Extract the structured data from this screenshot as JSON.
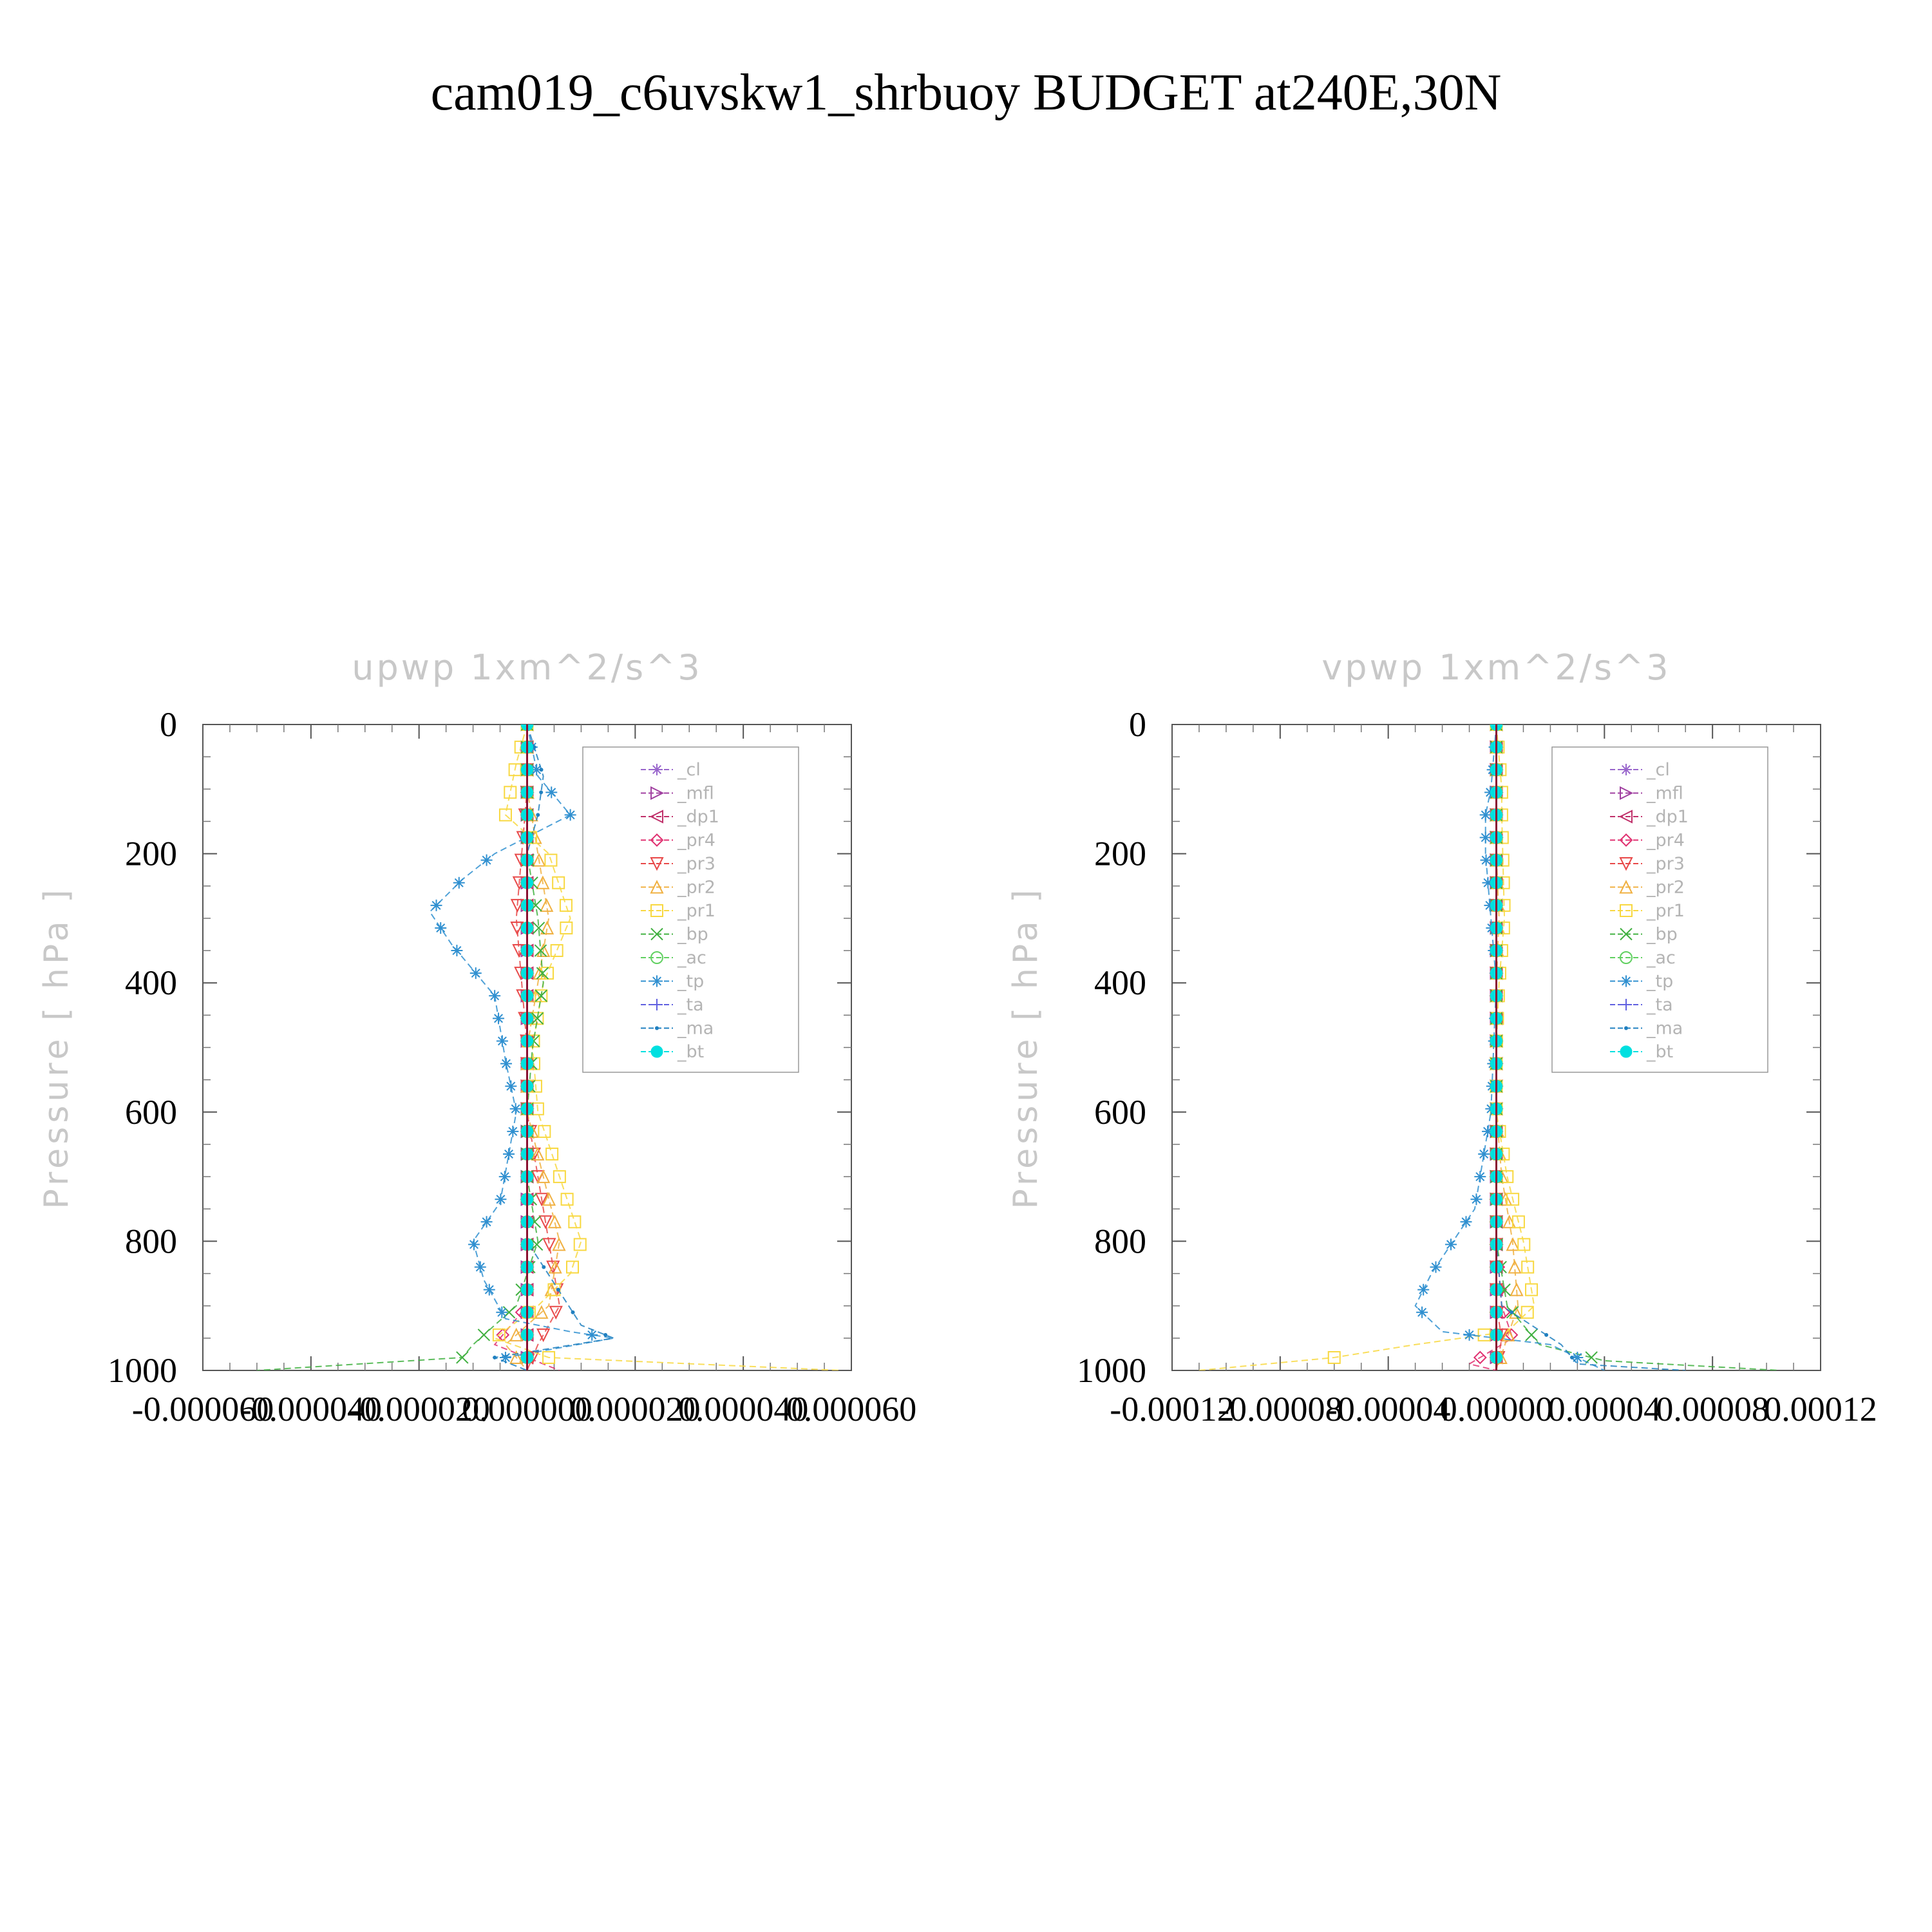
{
  "figure": {
    "title": "cam019_c6uvskw1_shrbuoy  BUDGET at240E,30N"
  },
  "chart_data": [
    {
      "type": "line",
      "title": "upwp    1xm^2/s^3",
      "ylabel": "Pressure [ hPa ]",
      "xlabel": "",
      "ylim": [
        1000,
        0
      ],
      "yticks": [
        "0",
        "200",
        "400",
        "600",
        "800",
        "1000"
      ],
      "ytick_values": [
        0,
        200,
        400,
        600,
        800,
        1000
      ],
      "xlim": [
        -6e-05,
        6e-05
      ],
      "xticks": [
        "-0.000060",
        "-0.000040",
        "-0.000020",
        "0.000000",
        "0.000020",
        "0.000040",
        "0.000060"
      ],
      "xtick_values": [
        -6e-05,
        -4e-05,
        -2e-05,
        0,
        2e-05,
        4e-05,
        6e-05
      ],
      "grid": false,
      "legend_position": "top-right",
      "series": [
        {
          "name": "_cl",
          "color": "#9966cc",
          "marker": "star",
          "x": [
            0,
            0,
            0,
            0,
            0,
            0,
            0,
            0,
            0,
            0,
            0
          ],
          "y": [
            0,
            100,
            200,
            300,
            400,
            500,
            600,
            700,
            800,
            900,
            1000
          ]
        },
        {
          "name": "_mfl",
          "color": "#a040a0",
          "marker": "tri-right",
          "x": [
            0,
            0,
            0,
            0,
            0,
            0,
            0,
            0,
            0,
            0,
            0
          ],
          "y": [
            0,
            100,
            200,
            300,
            400,
            500,
            600,
            700,
            800,
            900,
            1000
          ]
        },
        {
          "name": "_dp1",
          "color": "#c0306a",
          "marker": "tri-left",
          "x": [
            0,
            0,
            0,
            0,
            0,
            0,
            0,
            0,
            0,
            0,
            0
          ],
          "y": [
            0,
            100,
            200,
            300,
            400,
            500,
            600,
            700,
            800,
            900,
            1000
          ]
        },
        {
          "name": "_pr4",
          "color": "#e03070",
          "marker": "diamond",
          "x": [
            0,
            0,
            0,
            0,
            0,
            0,
            0,
            0,
            0,
            0,
            -6e-06,
            6e-06
          ],
          "y": [
            0,
            100,
            200,
            300,
            400,
            500,
            600,
            700,
            800,
            900,
            960,
            1000
          ]
        },
        {
          "name": "_pr3",
          "color": "#e84848",
          "marker": "tri-down",
          "x": [
            0,
            0,
            -1e-06,
            -2e-06,
            -1e-06,
            0,
            0,
            2e-06,
            4e-06,
            6e-06,
            2e-06,
            0
          ],
          "y": [
            0,
            100,
            200,
            300,
            400,
            500,
            600,
            700,
            800,
            900,
            960,
            1000
          ]
        },
        {
          "name": "_pr2",
          "color": "#f0b040",
          "marker": "tri-up",
          "x": [
            0,
            0,
            2e-06,
            4e-06,
            2e-06,
            0,
            0,
            3e-06,
            6e-06,
            4e-06,
            -4e-06,
            0
          ],
          "y": [
            0,
            100,
            200,
            300,
            400,
            500,
            600,
            700,
            800,
            900,
            960,
            1000
          ]
        },
        {
          "name": "_pr1",
          "color": "#f8d840",
          "marker": "square",
          "x": [
            0,
            -2e-06,
            -4e-06,
            4e-06,
            8e-06,
            3e-06,
            1e-06,
            2e-06,
            6e-06,
            1e-05,
            8e-06,
            2e-06,
            -6e-06,
            4e-06,
            5.8e-05
          ],
          "y": [
            0,
            60,
            140,
            200,
            300,
            400,
            500,
            600,
            700,
            800,
            850,
            900,
            950,
            980,
            1000
          ]
        },
        {
          "name": "_bp",
          "color": "#40b040",
          "marker": "x",
          "x": [
            0,
            0,
            0,
            2e-06,
            3e-06,
            1e-06,
            0,
            0,
            2e-06,
            -2e-06,
            -1e-05,
            -1.2e-05,
            -5e-05
          ],
          "y": [
            0,
            100,
            200,
            300,
            400,
            500,
            600,
            700,
            800,
            900,
            960,
            980,
            1000
          ]
        },
        {
          "name": "_ac",
          "color": "#60d060",
          "marker": "circle",
          "x": [
            0,
            0,
            0,
            0,
            0,
            0,
            0,
            0,
            0,
            0,
            0
          ],
          "y": [
            0,
            100,
            200,
            300,
            400,
            500,
            600,
            700,
            800,
            900,
            1000
          ]
        },
        {
          "name": "_tp",
          "color": "#3090d0",
          "marker": "asterisk",
          "x": [
            0,
            2e-06,
            8e-06,
            -6e-06,
            -1.2e-05,
            -1.8e-05,
            -1.4e-05,
            -6e-06,
            -4e-06,
            -2e-06,
            -5e-06,
            -1e-05,
            -8e-06,
            -4e-06,
            8e-06,
            1.6e-05,
            -4e-06
          ],
          "y": [
            0,
            80,
            140,
            200,
            240,
            290,
            340,
            420,
            520,
            600,
            740,
            800,
            860,
            920,
            940,
            950,
            980
          ]
        },
        {
          "name": "_ta",
          "color": "#6060e0",
          "marker": "plus",
          "x": [
            0,
            0,
            0,
            0,
            0,
            0,
            0,
            0,
            0,
            0,
            0
          ],
          "y": [
            0,
            100,
            200,
            300,
            400,
            500,
            600,
            700,
            800,
            900,
            1000
          ]
        },
        {
          "name": "_ma",
          "color": "#2080c0",
          "marker": "dot",
          "x": [
            0,
            3e-06,
            2e-06,
            0,
            0,
            0,
            0,
            0,
            0,
            0,
            1e-05,
            1.6e-05,
            -6e-06,
            0
          ],
          "y": [
            0,
            80,
            140,
            200,
            300,
            400,
            500,
            600,
            700,
            800,
            930,
            950,
            980,
            1000
          ]
        },
        {
          "name": "_bt",
          "color": "#00e0e0",
          "marker": "filled-circle",
          "x": [
            0,
            0,
            0,
            0,
            0,
            0,
            0,
            0,
            0,
            0,
            0
          ],
          "y": [
            0,
            100,
            200,
            300,
            400,
            500,
            600,
            700,
            800,
            900,
            1000
          ]
        }
      ]
    },
    {
      "type": "line",
      "title": "vpwp    1xm^2/s^3",
      "ylabel": "Pressure [ hPa ]",
      "xlabel": "",
      "ylim": [
        1000,
        0
      ],
      "yticks": [
        "0",
        "200",
        "400",
        "600",
        "800",
        "1000"
      ],
      "ytick_values": [
        0,
        200,
        400,
        600,
        800,
        1000
      ],
      "xlim": [
        -0.00012,
        0.00012
      ],
      "xticks": [
        "-0.00012",
        "-0.00008",
        "-0.00004",
        "0.00000",
        "0.00004",
        "0.00008",
        "0.00012"
      ],
      "xtick_values": [
        -0.00012,
        -8e-05,
        -4e-05,
        0,
        4e-05,
        8e-05,
        0.00012
      ],
      "grid": false,
      "legend_position": "top-right",
      "series": [
        {
          "name": "_cl",
          "color": "#9966cc",
          "marker": "star",
          "x": [
            0,
            0,
            0,
            0,
            0,
            0,
            0,
            0,
            0,
            0,
            0
          ],
          "y": [
            0,
            100,
            200,
            300,
            400,
            500,
            600,
            700,
            800,
            900,
            1000
          ]
        },
        {
          "name": "_mfl",
          "color": "#a040a0",
          "marker": "tri-right",
          "x": [
            0,
            0,
            0,
            0,
            0,
            0,
            0,
            0,
            0,
            0,
            0
          ],
          "y": [
            0,
            100,
            200,
            300,
            400,
            500,
            600,
            700,
            800,
            900,
            1000
          ]
        },
        {
          "name": "_dp1",
          "color": "#c0306a",
          "marker": "tri-left",
          "x": [
            0,
            0,
            0,
            0,
            0,
            0,
            0,
            0,
            0,
            0,
            0
          ],
          "y": [
            0,
            100,
            200,
            300,
            400,
            500,
            600,
            700,
            800,
            900,
            1000
          ]
        },
        {
          "name": "_pr4",
          "color": "#e03070",
          "marker": "diamond",
          "x": [
            0,
            0,
            0,
            0,
            0,
            0,
            0,
            0,
            0,
            2e-06,
            6e-06,
            -1e-05,
            0
          ],
          "y": [
            0,
            100,
            200,
            300,
            400,
            500,
            600,
            700,
            800,
            900,
            950,
            990,
            1000
          ]
        },
        {
          "name": "_pr3",
          "color": "#e84848",
          "marker": "tri-down",
          "x": [
            0,
            0,
            0,
            0,
            0,
            0,
            0,
            0,
            0,
            0,
            2e-06,
            0
          ],
          "y": [
            0,
            100,
            200,
            300,
            400,
            500,
            600,
            700,
            800,
            900,
            950,
            1000
          ]
        },
        {
          "name": "_pr2",
          "color": "#f0b040",
          "marker": "tri-up",
          "x": [
            0,
            0,
            0,
            1e-06,
            0,
            0,
            0,
            2e-06,
            6e-06,
            8e-06,
            4e-06,
            0
          ],
          "y": [
            0,
            100,
            200,
            300,
            400,
            500,
            600,
            700,
            800,
            900,
            950,
            1000
          ]
        },
        {
          "name": "_pr1",
          "color": "#f8d840",
          "marker": "square",
          "x": [
            0,
            2e-06,
            2e-06,
            3e-06,
            1e-06,
            0,
            0,
            4e-06,
            1e-05,
            1.4e-05,
            4e-06,
            -3e-05,
            -6e-05,
            -0.00011
          ],
          "y": [
            0,
            100,
            140,
            300,
            400,
            500,
            600,
            700,
            800,
            900,
            940,
            960,
            980,
            1000
          ]
        },
        {
          "name": "_bp",
          "color": "#40b040",
          "marker": "x",
          "x": [
            0,
            0,
            0,
            0,
            0,
            0,
            0,
            0,
            0,
            4e-06,
            1.6e-05,
            4e-05,
            0.000105
          ],
          "y": [
            0,
            100,
            200,
            300,
            400,
            500,
            600,
            700,
            800,
            900,
            960,
            985,
            1000
          ]
        },
        {
          "name": "_ac",
          "color": "#60d060",
          "marker": "circle",
          "x": [
            0,
            0,
            0,
            0,
            0,
            0,
            0,
            0,
            0,
            0,
            0
          ],
          "y": [
            0,
            100,
            200,
            300,
            400,
            500,
            600,
            700,
            800,
            900,
            1000
          ]
        },
        {
          "name": "_tp",
          "color": "#3090d0",
          "marker": "asterisk",
          "x": [
            0,
            -2e-06,
            -4e-06,
            -4e-06,
            -2e-06,
            0,
            -2e-06,
            -8e-06,
            -1.6e-05,
            -2.4e-05,
            -3e-05,
            -2e-05,
            2e-05,
            3e-05,
            4e-05
          ],
          "y": [
            0,
            100,
            140,
            200,
            300,
            400,
            600,
            750,
            800,
            850,
            900,
            940,
            960,
            980,
            1000
          ]
        },
        {
          "name": "_ta",
          "color": "#6060e0",
          "marker": "plus",
          "x": [
            0,
            0,
            0,
            0,
            0,
            0,
            0,
            0,
            0,
            0,
            0
          ],
          "y": [
            0,
            100,
            200,
            300,
            400,
            500,
            600,
            700,
            800,
            900,
            1000
          ]
        },
        {
          "name": "_ma",
          "color": "#2080c0",
          "marker": "dot",
          "x": [
            0,
            0,
            0,
            0,
            0,
            0,
            0,
            0,
            0,
            2e-06,
            2.4e-05,
            3e-05,
            7e-05
          ],
          "y": [
            0,
            100,
            200,
            300,
            400,
            500,
            600,
            700,
            800,
            900,
            960,
            990,
            1000
          ]
        },
        {
          "name": "_bt",
          "color": "#00e0e0",
          "marker": "filled-circle",
          "x": [
            0,
            0,
            0,
            0,
            0,
            0,
            0,
            0,
            0,
            0,
            0
          ],
          "y": [
            0,
            100,
            200,
            300,
            400,
            500,
            600,
            700,
            800,
            900,
            1000
          ]
        }
      ]
    }
  ]
}
